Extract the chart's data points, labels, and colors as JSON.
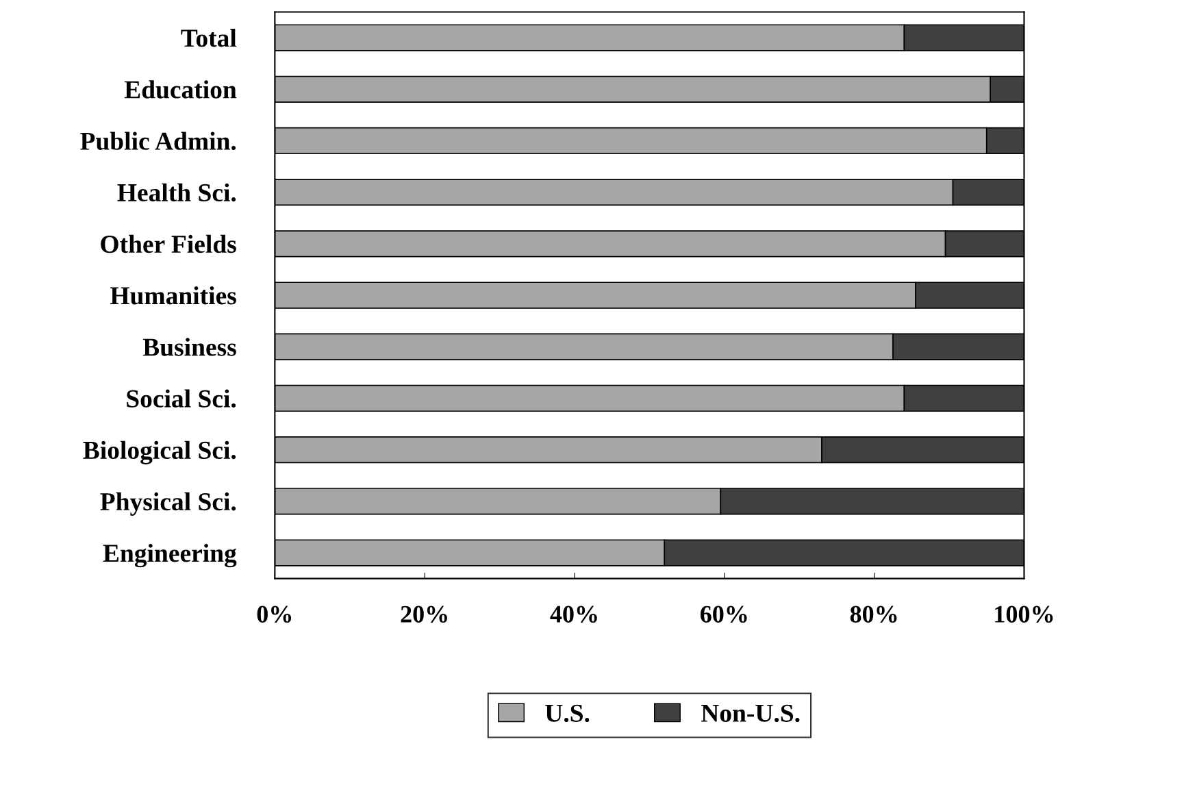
{
  "chart_data": {
    "type": "bar",
    "orientation": "horizontal",
    "stacked": true,
    "categories": [
      "Total",
      "Education",
      "Public Admin.",
      "Health Sci.",
      "Other Fields",
      "Humanities",
      "Business",
      "Social Sci.",
      "Biological Sci.",
      "Physical Sci.",
      "Engineering"
    ],
    "series": [
      {
        "name": "U.S.",
        "color": "#a6a6a6",
        "values": [
          84,
          95.5,
          95,
          90.5,
          89.5,
          85.5,
          82.5,
          84,
          73,
          59.5,
          52
        ]
      },
      {
        "name": "Non-U.S.",
        "color": "#404040",
        "values": [
          16,
          4.5,
          5,
          9.5,
          10.5,
          14.5,
          17.5,
          16,
          27,
          40.5,
          48
        ]
      }
    ],
    "xlim": [
      0,
      100
    ],
    "xticks": [
      {
        "value": 0,
        "label": "0%"
      },
      {
        "value": 20,
        "label": "20%"
      },
      {
        "value": 40,
        "label": "40%"
      },
      {
        "value": 60,
        "label": "60%"
      },
      {
        "value": 80,
        "label": "80%"
      },
      {
        "value": 100,
        "label": "100%"
      }
    ],
    "grid": false,
    "legend": "bottom"
  }
}
